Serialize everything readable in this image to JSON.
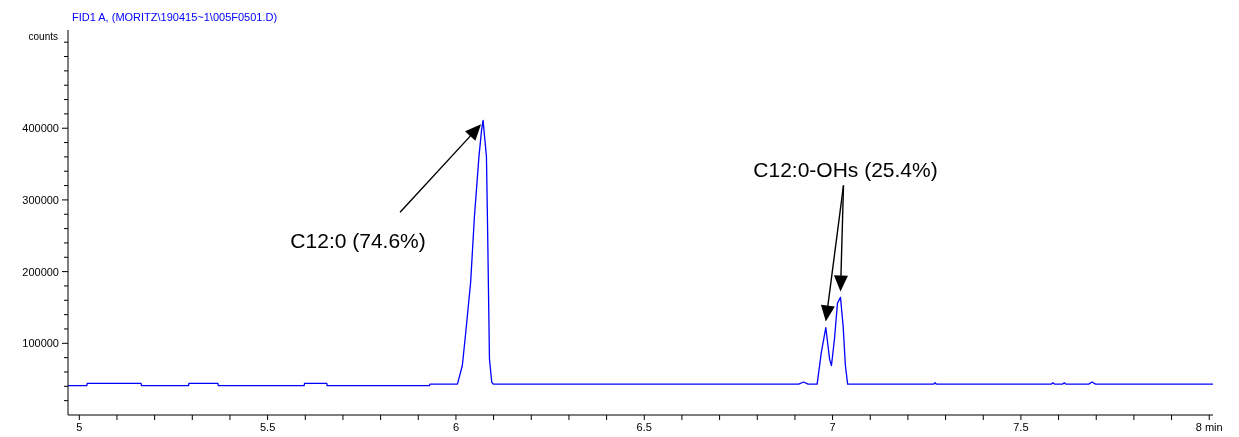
{
  "chart_data": {
    "type": "line",
    "title": "FID1 A, (MORITZ\\190415~1\\005F0501.D)",
    "ylabel": "counts",
    "xlim": [
      4.97,
      8.01
    ],
    "ylim": [
      0,
      537000
    ],
    "xticks": [
      5,
      {
        "value": 5.1,
        "label": null
      },
      {
        "value": 5.2,
        "label": null
      },
      {
        "value": 5.3,
        "label": null
      },
      {
        "value": 5.4,
        "label": null
      },
      5.5,
      {
        "value": 5.6,
        "label": null
      },
      {
        "value": 5.7,
        "label": null
      },
      {
        "value": 5.8,
        "label": null
      },
      {
        "value": 5.9,
        "label": null
      },
      6,
      {
        "value": 6.1,
        "label": null
      },
      {
        "value": 6.2,
        "label": null
      },
      {
        "value": 6.3,
        "label": null
      },
      {
        "value": 6.4,
        "label": null
      },
      6.5,
      {
        "value": 6.6,
        "label": null
      },
      {
        "value": 6.7,
        "label": null
      },
      {
        "value": 6.8,
        "label": null
      },
      {
        "value": 6.9,
        "label": null
      },
      7,
      {
        "value": 7.1,
        "label": null
      },
      {
        "value": 7.2,
        "label": null
      },
      {
        "value": 7.3,
        "label": null
      },
      {
        "value": 7.4,
        "label": null
      },
      7.5,
      {
        "value": 7.6,
        "label": null
      },
      {
        "value": 7.7,
        "label": null
      },
      {
        "value": 7.8,
        "label": null
      },
      {
        "value": 7.9,
        "label": null
      },
      {
        "value": 8,
        "label": "8 min"
      }
    ],
    "yticks": [
      {
        "value": 20000,
        "label": null
      },
      {
        "value": 40000,
        "label": null
      },
      {
        "value": 60000,
        "label": null
      },
      {
        "value": 80000,
        "label": null
      },
      100000,
      {
        "value": 120000,
        "label": null
      },
      {
        "value": 140000,
        "label": null
      },
      {
        "value": 160000,
        "label": null
      },
      {
        "value": 180000,
        "label": null
      },
      200000,
      {
        "value": 220000,
        "label": null
      },
      {
        "value": 240000,
        "label": null
      },
      {
        "value": 260000,
        "label": null
      },
      {
        "value": 280000,
        "label": null
      },
      300000,
      {
        "value": 320000,
        "label": null
      },
      {
        "value": 340000,
        "label": null
      },
      {
        "value": 360000,
        "label": null
      },
      {
        "value": 380000,
        "label": null
      },
      400000,
      {
        "value": 420000,
        "label": null
      },
      {
        "value": 440000,
        "label": null
      },
      {
        "value": 460000,
        "label": null
      },
      {
        "value": 480000,
        "label": null
      },
      {
        "value": 500000,
        "label": null
      },
      {
        "value": 520000,
        "label": null
      }
    ],
    "grid": false,
    "marker": "none",
    "line_style": "solid",
    "annotations": [
      "C12:0 (74.6%)",
      "C12:0-OHs (25.4%)"
    ],
    "series": [
      {
        "color": "#0000ff",
        "x": [
          4.97,
          5.02,
          5.021,
          5.164,
          5.165,
          5.29,
          5.291,
          5.368,
          5.369,
          5.597,
          5.598,
          5.657,
          5.658,
          5.93,
          5.931,
          6.004,
          6.017,
          6.026,
          6.039,
          6.049,
          6.061,
          6.068,
          6.072,
          6.081,
          6.084,
          6.087,
          6.089,
          6.095,
          6.099,
          6.91,
          6.923,
          6.935,
          6.959,
          6.97,
          6.982,
          6.992,
          6.997,
          7.005,
          7.013,
          7.021,
          7.028,
          7.034,
          7.04,
          7.268,
          7.272,
          7.276,
          7.58,
          7.585,
          7.59,
          7.61,
          7.615,
          7.62,
          7.68,
          7.689,
          7.698,
          8.01
        ],
        "values": [
          41000,
          41000,
          44000,
          44000,
          41000,
          41000,
          44000,
          44000,
          41000,
          41000,
          44000,
          44000,
          41000,
          41000,
          43000,
          43000,
          69000,
          115000,
          185000,
          276000,
          360000,
          397000,
          411000,
          360000,
          262000,
          151000,
          78000,
          46000,
          43000,
          43000,
          46000,
          43000,
          43000,
          87000,
          122000,
          78000,
          69000,
          106000,
          156000,
          164000,
          124000,
          69000,
          43000,
          43000,
          45000,
          43000,
          43000,
          45000,
          43000,
          43000,
          45000,
          43000,
          43000,
          46000,
          43000,
          43000
        ]
      }
    ]
  }
}
